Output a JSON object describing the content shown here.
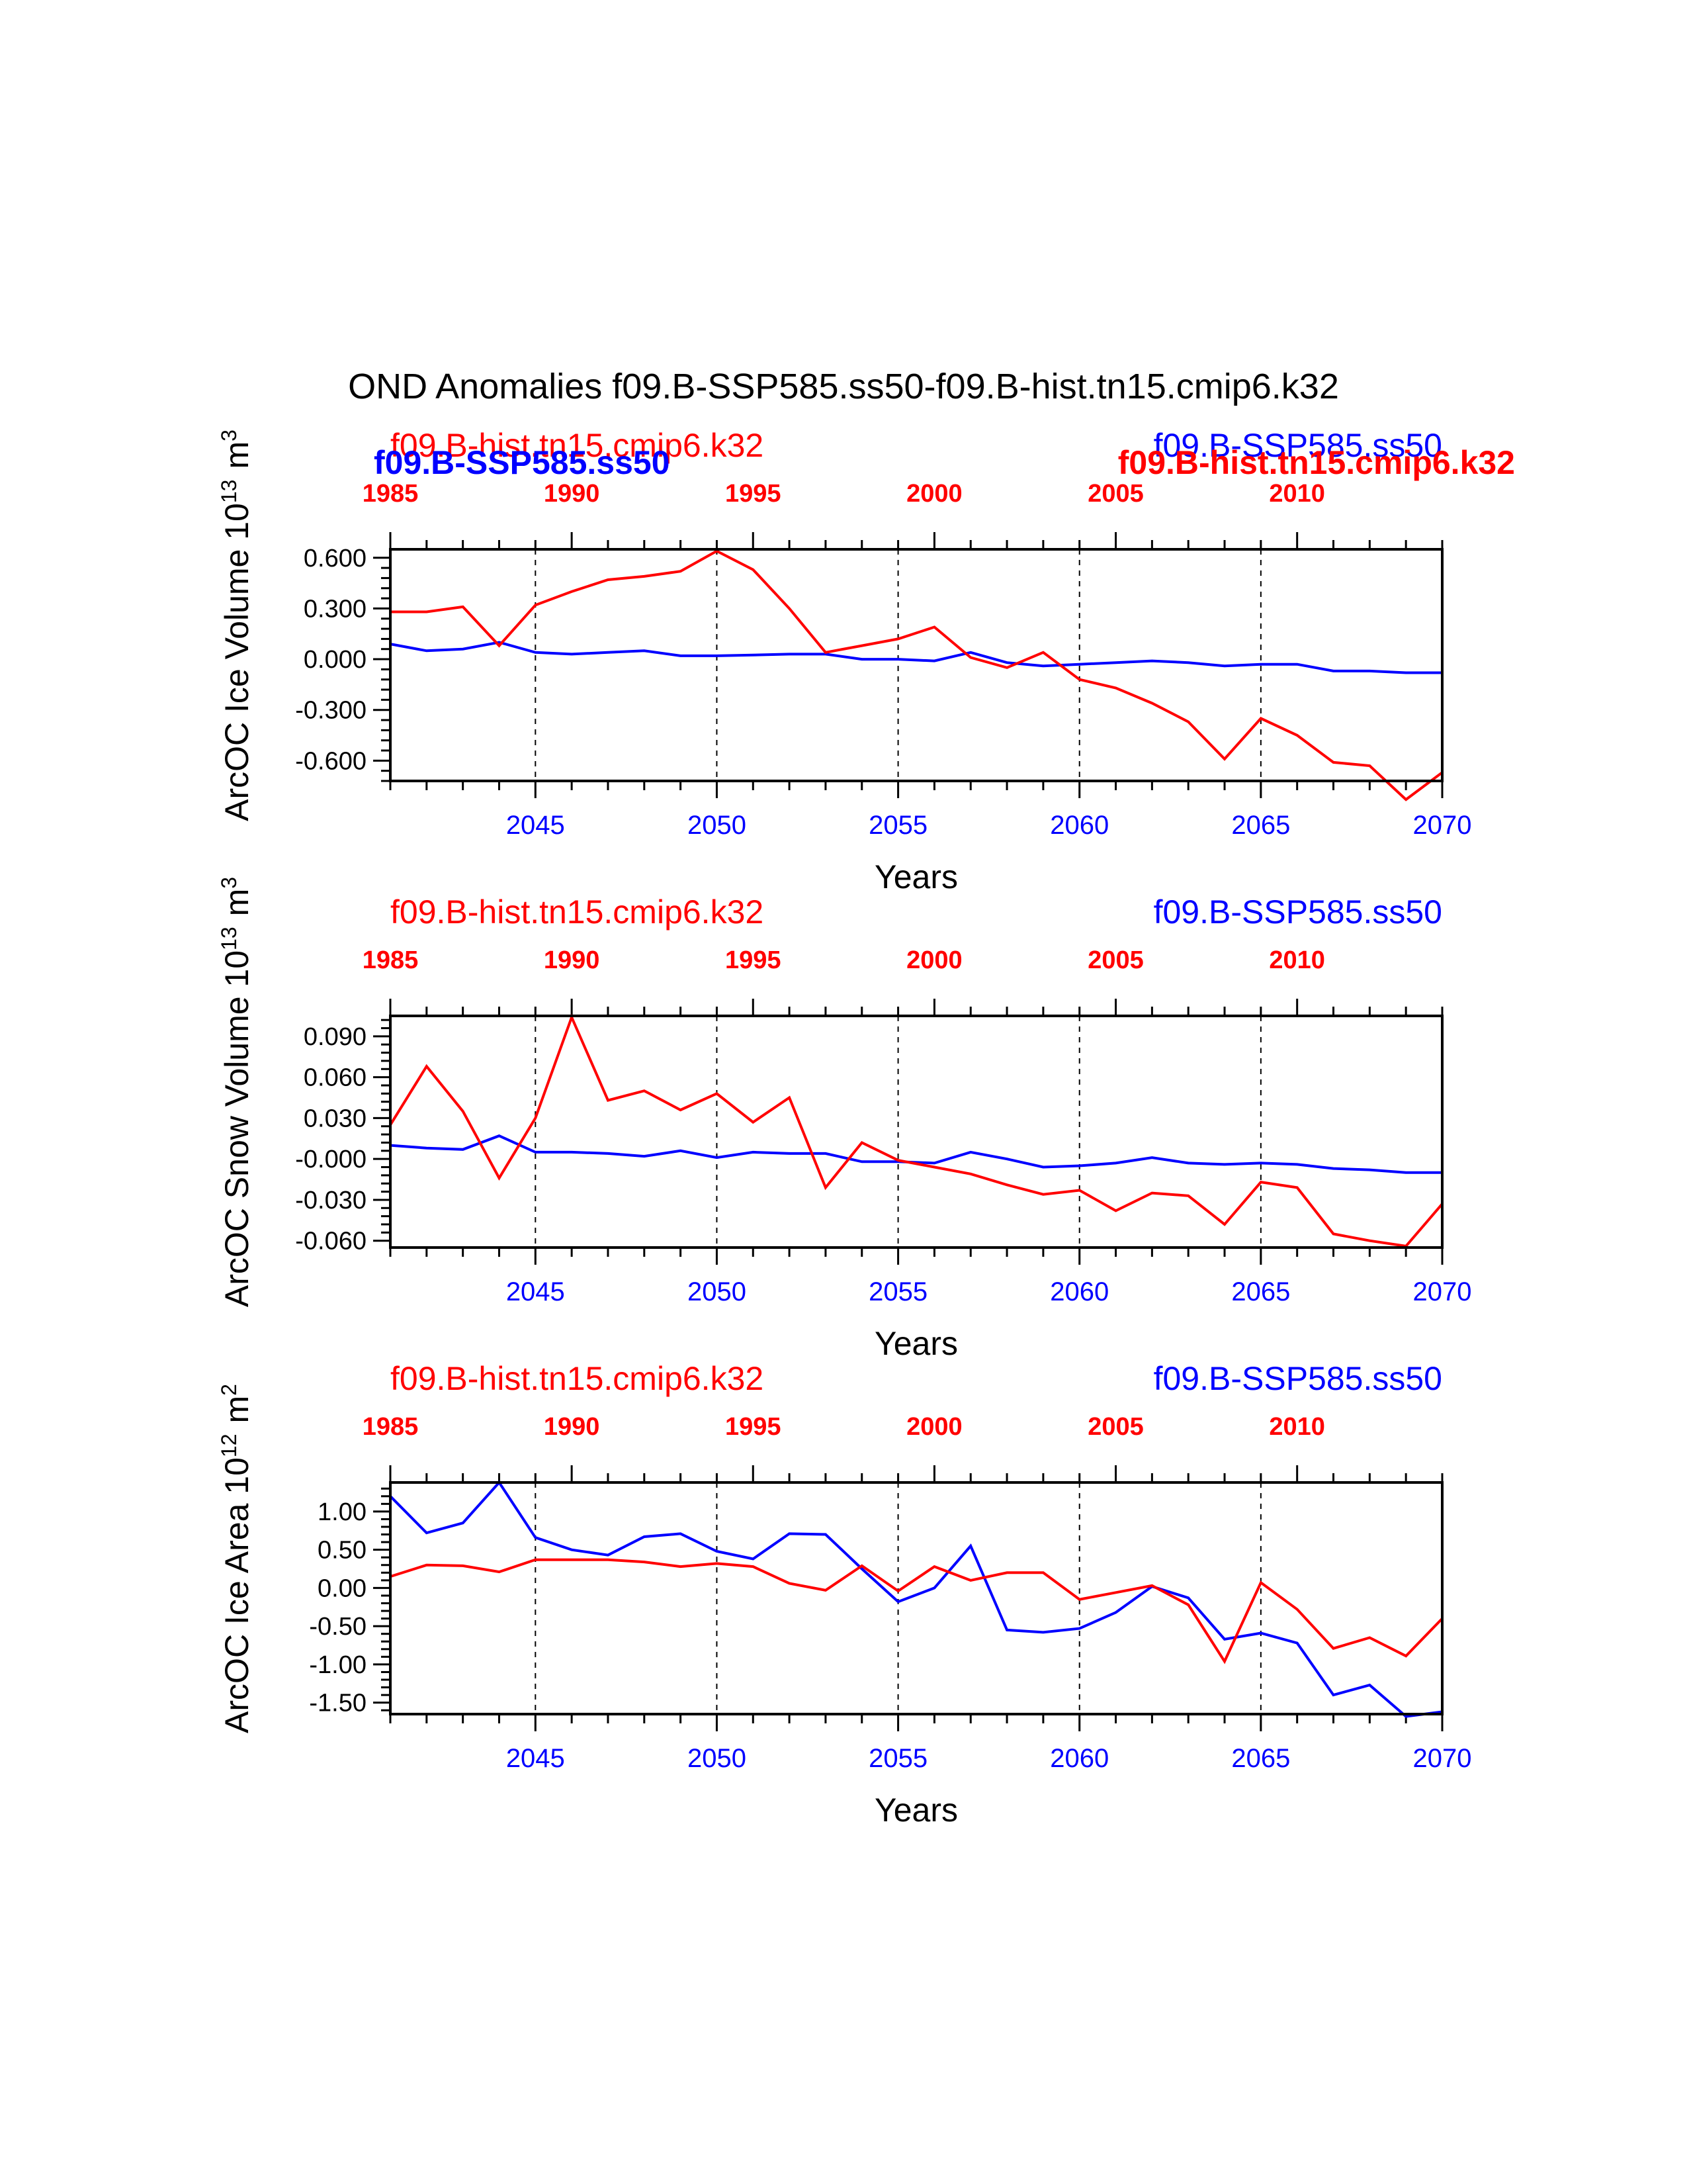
{
  "title": "OND Anomalies f09.B-SSP585.ss50-f09.B-hist.tn15.cmip6.k32",
  "colors": {
    "ssp": "#0000ff",
    "hist": "#ff0000",
    "axis": "#000000"
  },
  "chart_data": [
    {
      "type": "line",
      "ylabel": "ArcOC Ice Volume 10",
      "ylabel_sup": "13",
      "ylabel_unit": "m",
      "ylabel_unit_sup": "3",
      "xlabel": "Years",
      "label_hist": "f09.B-hist.tn15.cmip6.k32",
      "label_ssp": "f09.B-SSP585.ss50",
      "overlap_labels": true,
      "ylim": [
        -0.72,
        0.65
      ],
      "yticks": [
        0.6,
        0.3,
        0.0,
        -0.3,
        -0.6
      ],
      "ytick_labels": [
        "0.600",
        "0.300",
        "0.000",
        "-0.300",
        "-0.600"
      ],
      "xlim": [
        2041,
        2070
      ],
      "xticks_bottom": [
        2045,
        2050,
        2055,
        2060,
        2065,
        2070
      ],
      "xticks_top_labels": [
        "1985",
        "1990",
        "1995",
        "2000",
        "2005",
        "2010"
      ],
      "xticks_top_positions": [
        2041,
        2046,
        2051,
        2056,
        2061,
        2066
      ],
      "grid_x": [
        2045,
        2050,
        2055,
        2060,
        2065
      ],
      "x": [
        2041,
        2042,
        2043,
        2044,
        2045,
        2046,
        2047,
        2048,
        2049,
        2050,
        2051,
        2052,
        2053,
        2054,
        2055,
        2056,
        2057,
        2058,
        2059,
        2060,
        2061,
        2062,
        2063,
        2064,
        2065,
        2066,
        2067,
        2068,
        2069,
        2070
      ],
      "series": [
        {
          "name": "f09.B-SSP585.ss50",
          "color": "#0000ff",
          "values": [
            0.09,
            0.05,
            0.06,
            0.1,
            0.04,
            0.03,
            0.04,
            0.05,
            0.02,
            0.02,
            0.025,
            0.03,
            0.03,
            0.0,
            0.0,
            -0.01,
            0.04,
            -0.02,
            -0.04,
            -0.03,
            -0.02,
            -0.01,
            -0.02,
            -0.04,
            -0.03,
            -0.03,
            -0.07,
            -0.07,
            -0.08,
            -0.08
          ]
        },
        {
          "name": "f09.B-hist.tn15.cmip6.k32",
          "color": "#ff0000",
          "values": [
            0.28,
            0.28,
            0.31,
            0.08,
            0.32,
            0.4,
            0.47,
            0.49,
            0.52,
            0.64,
            0.53,
            0.3,
            0.04,
            0.08,
            0.12,
            0.19,
            0.01,
            -0.05,
            0.04,
            -0.12,
            -0.17,
            -0.26,
            -0.37,
            -0.59,
            -0.35,
            -0.45,
            -0.61,
            -0.63,
            -0.83,
            -0.67
          ]
        }
      ]
    },
    {
      "type": "line",
      "ylabel": "ArcOC Snow Volume 10",
      "ylabel_sup": "13",
      "ylabel_unit": "m",
      "ylabel_unit_sup": "3",
      "xlabel": "Years",
      "label_hist": "f09.B-hist.tn15.cmip6.k32",
      "label_ssp": "f09.B-SSP585.ss50",
      "overlap_labels": false,
      "ylim": [
        -0.065,
        0.105
      ],
      "yticks": [
        0.09,
        0.06,
        0.03,
        0.0,
        -0.03,
        -0.06
      ],
      "ytick_labels": [
        "0.090",
        "0.060",
        "0.030",
        "-0.000",
        "-0.030",
        "-0.060"
      ],
      "xlim": [
        2041,
        2070
      ],
      "xticks_bottom": [
        2045,
        2050,
        2055,
        2060,
        2065,
        2070
      ],
      "xticks_top_labels": [
        "1985",
        "1990",
        "1995",
        "2000",
        "2005",
        "2010"
      ],
      "xticks_top_positions": [
        2041,
        2046,
        2051,
        2056,
        2061,
        2066
      ],
      "grid_x": [
        2045,
        2050,
        2055,
        2060,
        2065
      ],
      "x": [
        2041,
        2042,
        2043,
        2044,
        2045,
        2046,
        2047,
        2048,
        2049,
        2050,
        2051,
        2052,
        2053,
        2054,
        2055,
        2056,
        2057,
        2058,
        2059,
        2060,
        2061,
        2062,
        2063,
        2064,
        2065,
        2066,
        2067,
        2068,
        2069,
        2070
      ],
      "series": [
        {
          "name": "f09.B-SSP585.ss50",
          "color": "#0000ff",
          "values": [
            0.01,
            0.008,
            0.007,
            0.017,
            0.005,
            0.005,
            0.004,
            0.002,
            0.006,
            0.001,
            0.005,
            0.004,
            0.004,
            -0.002,
            -0.002,
            -0.003,
            0.005,
            0.0,
            -0.006,
            -0.005,
            -0.003,
            0.001,
            -0.003,
            -0.004,
            -0.003,
            -0.004,
            -0.007,
            -0.008,
            -0.01,
            -0.01
          ]
        },
        {
          "name": "f09.B-hist.tn15.cmip6.k32",
          "color": "#ff0000",
          "values": [
            0.025,
            0.068,
            0.035,
            -0.014,
            0.03,
            0.104,
            0.043,
            0.05,
            0.036,
            0.048,
            0.027,
            0.045,
            -0.021,
            0.012,
            -0.001,
            -0.006,
            -0.011,
            -0.019,
            -0.026,
            -0.023,
            -0.038,
            -0.025,
            -0.027,
            -0.048,
            -0.017,
            -0.021,
            -0.055,
            -0.06,
            -0.064,
            -0.033
          ]
        }
      ]
    },
    {
      "type": "line",
      "ylabel": "ArcOC Ice Area 10",
      "ylabel_sup": "12",
      "ylabel_unit": "m",
      "ylabel_unit_sup": "2",
      "xlabel": "Years",
      "label_hist": "f09.B-hist.tn15.cmip6.k32",
      "label_ssp": "f09.B-SSP585.ss50",
      "overlap_labels": false,
      "ylim": [
        -1.65,
        1.38
      ],
      "yticks": [
        1.0,
        0.5,
        0.0,
        -0.5,
        -1.0,
        -1.5
      ],
      "ytick_labels": [
        "1.00",
        "0.50",
        "0.00",
        "-0.50",
        "-1.00",
        "-1.50"
      ],
      "xlim": [
        2041,
        2070
      ],
      "xticks_bottom": [
        2045,
        2050,
        2055,
        2060,
        2065,
        2070
      ],
      "xticks_top_labels": [
        "1985",
        "1990",
        "1995",
        "2000",
        "2005",
        "2010"
      ],
      "xticks_top_positions": [
        2041,
        2046,
        2051,
        2056,
        2061,
        2066
      ],
      "grid_x": [
        2045,
        2050,
        2055,
        2060,
        2065
      ],
      "x": [
        2041,
        2042,
        2043,
        2044,
        2045,
        2046,
        2047,
        2048,
        2049,
        2050,
        2051,
        2052,
        2053,
        2054,
        2055,
        2056,
        2057,
        2058,
        2059,
        2060,
        2061,
        2062,
        2063,
        2064,
        2065,
        2066,
        2067,
        2068,
        2069,
        2070
      ],
      "series": [
        {
          "name": "f09.B-SSP585.ss50",
          "color": "#0000ff",
          "values": [
            1.2,
            0.72,
            0.85,
            1.38,
            0.66,
            0.5,
            0.43,
            0.67,
            0.71,
            0.48,
            0.38,
            0.71,
            0.7,
            0.25,
            -0.18,
            0.0,
            0.55,
            -0.55,
            -0.58,
            -0.53,
            -0.32,
            0.02,
            -0.13,
            -0.67,
            -0.59,
            -0.72,
            -1.4,
            -1.27,
            -1.68,
            -1.62
          ]
        },
        {
          "name": "f09.B-hist.tn15.cmip6.k32",
          "color": "#ff0000",
          "values": [
            0.15,
            0.3,
            0.29,
            0.21,
            0.37,
            0.37,
            0.37,
            0.34,
            0.28,
            0.32,
            0.28,
            0.06,
            -0.03,
            0.29,
            -0.04,
            0.28,
            0.1,
            0.2,
            0.2,
            -0.15,
            -0.06,
            0.03,
            -0.22,
            -0.96,
            0.07,
            -0.28,
            -0.79,
            -0.65,
            -0.89,
            -0.4
          ]
        }
      ]
    }
  ]
}
